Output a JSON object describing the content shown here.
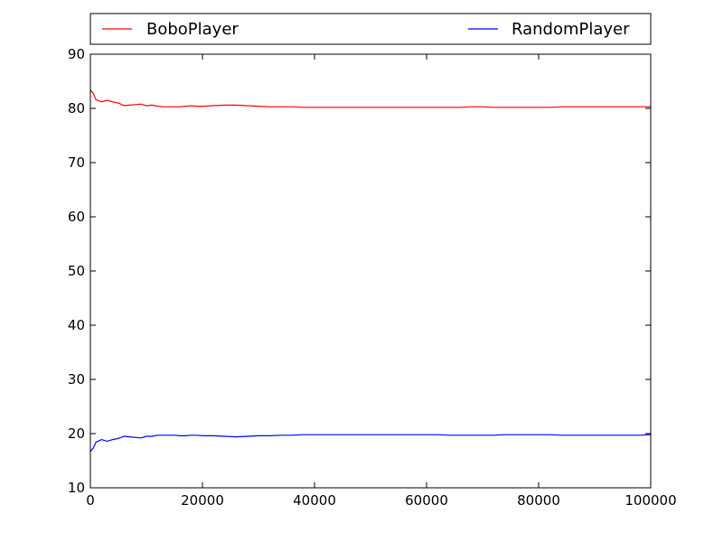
{
  "chart_data": {
    "type": "line",
    "title": "",
    "xlabel": "",
    "ylabel": "",
    "xlim": [
      0,
      100000
    ],
    "ylim": [
      10,
      90
    ],
    "x_ticks": [
      0,
      20000,
      40000,
      60000,
      80000,
      100000
    ],
    "y_ticks": [
      10,
      20,
      30,
      40,
      50,
      60,
      70,
      80,
      90
    ],
    "grid": false,
    "legend_position": "top",
    "series": [
      {
        "name": "BoboPlayer",
        "color": "#ff0000",
        "x": [
          0,
          500,
          1000,
          2000,
          3000,
          4000,
          5000,
          6000,
          7000,
          8000,
          9000,
          10000,
          11000,
          12000,
          13000,
          14000,
          15000,
          16000,
          17000,
          18000,
          19000,
          20000,
          22000,
          24000,
          26000,
          28000,
          30000,
          32000,
          34000,
          36000,
          38000,
          40000,
          42000,
          44000,
          46000,
          48000,
          50000,
          52000,
          54000,
          56000,
          58000,
          60000,
          62000,
          64000,
          66000,
          68000,
          70000,
          72000,
          74000,
          76000,
          78000,
          80000,
          82000,
          84000,
          86000,
          88000,
          90000,
          92000,
          94000,
          96000,
          98000,
          100000
        ],
        "y": [
          83.4,
          82.8,
          81.6,
          81.2,
          81.5,
          81.2,
          81.0,
          80.5,
          80.6,
          80.7,
          80.8,
          80.5,
          80.6,
          80.4,
          80.3,
          80.3,
          80.3,
          80.3,
          80.4,
          80.5,
          80.4,
          80.4,
          80.5,
          80.6,
          80.6,
          80.5,
          80.4,
          80.3,
          80.3,
          80.3,
          80.2,
          80.2,
          80.2,
          80.2,
          80.2,
          80.2,
          80.2,
          80.2,
          80.2,
          80.2,
          80.2,
          80.2,
          80.2,
          80.2,
          80.2,
          80.3,
          80.3,
          80.2,
          80.2,
          80.2,
          80.2,
          80.2,
          80.2,
          80.3,
          80.3,
          80.3,
          80.3,
          80.3,
          80.3,
          80.3,
          80.3,
          80.3
        ]
      },
      {
        "name": "RandomPlayer",
        "color": "#0000ff",
        "x": [
          0,
          500,
          1000,
          2000,
          3000,
          4000,
          5000,
          6000,
          7000,
          8000,
          9000,
          10000,
          11000,
          12000,
          13000,
          14000,
          15000,
          16000,
          17000,
          18000,
          19000,
          20000,
          22000,
          24000,
          26000,
          28000,
          30000,
          32000,
          34000,
          36000,
          38000,
          40000,
          42000,
          44000,
          46000,
          48000,
          50000,
          52000,
          54000,
          56000,
          58000,
          60000,
          62000,
          64000,
          66000,
          68000,
          70000,
          72000,
          74000,
          76000,
          78000,
          80000,
          82000,
          84000,
          86000,
          88000,
          90000,
          92000,
          94000,
          96000,
          98000,
          100000
        ],
        "y": [
          16.7,
          17.3,
          18.4,
          18.9,
          18.6,
          18.9,
          19.1,
          19.5,
          19.4,
          19.3,
          19.2,
          19.5,
          19.5,
          19.7,
          19.7,
          19.7,
          19.7,
          19.6,
          19.6,
          19.7,
          19.7,
          19.6,
          19.6,
          19.5,
          19.4,
          19.5,
          19.6,
          19.6,
          19.7,
          19.7,
          19.8,
          19.8,
          19.8,
          19.8,
          19.8,
          19.8,
          19.8,
          19.8,
          19.8,
          19.8,
          19.8,
          19.8,
          19.8,
          19.7,
          19.7,
          19.7,
          19.7,
          19.7,
          19.8,
          19.8,
          19.8,
          19.8,
          19.8,
          19.7,
          19.7,
          19.7,
          19.7,
          19.7,
          19.7,
          19.7,
          19.7,
          19.8
        ]
      }
    ]
  }
}
